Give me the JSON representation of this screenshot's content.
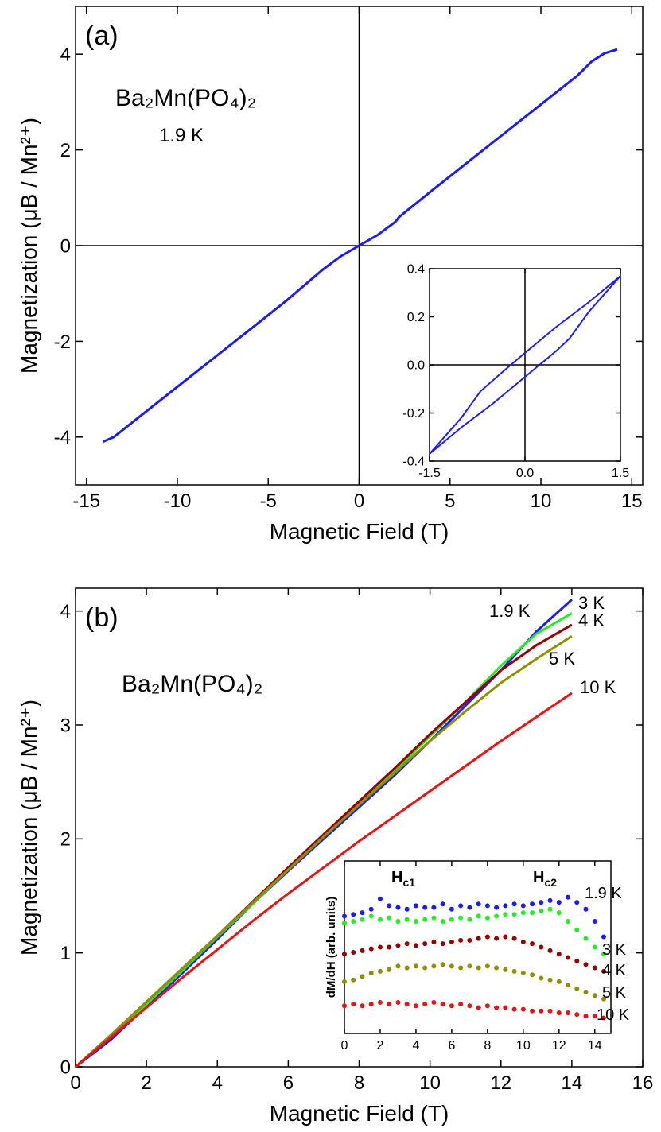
{
  "chart_data": [
    {
      "type": "line",
      "panel_label": "(a)",
      "compound": "Ba₂Mn(PO₄)₂",
      "temperature": "1.9 K",
      "xlabel": "Magnetic Field (T)",
      "ylabel": "Magnetization (μB / Mn²⁺)",
      "xlim": [
        -15.6,
        15.6
      ],
      "ylim": [
        -5,
        5
      ],
      "xticks": [
        -15,
        -10,
        -5,
        0,
        5,
        10,
        15
      ],
      "yticks": [
        -4,
        -2,
        0,
        2,
        4
      ],
      "zero_lines": true,
      "x": [
        -14.1,
        -13.5,
        -13,
        -12,
        -10,
        -8,
        -6,
        -4,
        -2,
        -1,
        0,
        1,
        2,
        2.2,
        4,
        6,
        8,
        10,
        12,
        12.8,
        13.5,
        14.2
      ],
      "series": [
        {
          "color": "#1a1aff",
          "values": [
            -4.1,
            -4.0,
            -3.85,
            -3.55,
            -2.95,
            -2.35,
            -1.75,
            -1.15,
            -0.5,
            -0.22,
            0,
            0.22,
            0.5,
            0.6,
            1.15,
            1.75,
            2.35,
            2.95,
            3.55,
            3.85,
            4.02,
            4.1
          ]
        }
      ]
    },
    {
      "type": "line",
      "xlim": [
        -1.5,
        1.5
      ],
      "ylim": [
        -0.4,
        0.4
      ],
      "xticks": [
        -1.5,
        {
          "value": 0,
          "label": "0.0"
        },
        1.5
      ],
      "yticks": [
        -0.4,
        -0.2,
        {
          "value": 0,
          "label": "0.0"
        },
        0.2,
        0.4
      ],
      "zero_lines": true,
      "series": [
        {
          "color": "#1a1aff",
          "x": [
            -1.5,
            -1.0,
            -0.7,
            -0.4,
            0,
            0.5,
            1.0,
            1.5
          ],
          "values": [
            -0.37,
            -0.22,
            -0.11,
            -0.04,
            0.05,
            0.16,
            0.26,
            0.37
          ]
        },
        {
          "color": "#1a1aff",
          "x": [
            -1.5,
            -1.0,
            -0.5,
            0,
            0.5,
            0.7,
            1.0,
            1.5
          ],
          "values": [
            -0.37,
            -0.26,
            -0.16,
            -0.05,
            0.06,
            0.11,
            0.22,
            0.37
          ]
        }
      ]
    },
    {
      "type": "line",
      "panel_label": "(b)",
      "compound": "Ba₂Mn(PO₄)₂",
      "xlabel": "Magnetic Field (T)",
      "ylabel": "Magnetization (μB / Mn²⁺)",
      "xlim": [
        0,
        16
      ],
      "ylim": [
        0,
        4.2
      ],
      "xticks": [
        0,
        2,
        4,
        6,
        8,
        10,
        12,
        14,
        16
      ],
      "yticks": [
        0,
        1,
        2,
        3,
        4
      ],
      "x": [
        0,
        1,
        2,
        3,
        4,
        5,
        6,
        7,
        8,
        9,
        10,
        11,
        12,
        13,
        14
      ],
      "series": [
        {
          "name": "1.9 K",
          "color": "#1a1aff",
          "values": [
            0,
            0.24,
            0.53,
            0.82,
            1.12,
            1.43,
            1.72,
            2.0,
            2.28,
            2.56,
            2.86,
            3.17,
            3.48,
            3.82,
            4.1
          ]
        },
        {
          "name": "3 K",
          "color": "#22ee22",
          "values": [
            0,
            0.27,
            0.55,
            0.84,
            1.14,
            1.43,
            1.73,
            2.02,
            2.3,
            2.6,
            2.9,
            3.2,
            3.52,
            3.8,
            3.98
          ]
        },
        {
          "name": "4 K",
          "color": "#990000",
          "values": [
            0,
            0.28,
            0.57,
            0.86,
            1.15,
            1.45,
            1.75,
            2.04,
            2.33,
            2.62,
            2.92,
            3.2,
            3.48,
            3.7,
            3.88
          ]
        },
        {
          "name": "5 K",
          "color": "#8f8f00",
          "values": [
            0,
            0.28,
            0.57,
            0.86,
            1.15,
            1.44,
            1.73,
            2.02,
            2.3,
            2.58,
            2.86,
            3.12,
            3.37,
            3.58,
            3.78
          ]
        },
        {
          "name": "10 K",
          "color": "#ee1111",
          "values": [
            0,
            0.26,
            0.52,
            0.78,
            1.03,
            1.28,
            1.52,
            1.75,
            1.98,
            2.2,
            2.42,
            2.64,
            2.86,
            3.07,
            3.28
          ]
        }
      ]
    },
    {
      "type": "scatter",
      "ylabel": "dM/dH (arb. units)",
      "annotations": [
        {
          "text": "H",
          "sub": "c1"
        },
        {
          "text": "H",
          "sub": "c2"
        }
      ],
      "xlim": [
        0,
        14.9
      ],
      "ylim": [
        0,
        10
      ],
      "xticks": [
        0,
        2,
        4,
        6,
        8,
        10,
        12,
        14
      ],
      "x": [
        0,
        0.5,
        1,
        1.5,
        2,
        2.5,
        3,
        3.5,
        4,
        4.5,
        5,
        5.5,
        6,
        6.5,
        7,
        7.5,
        8,
        8.5,
        9,
        9.5,
        10,
        10.5,
        11,
        11.5,
        12,
        12.5,
        13,
        13.5,
        14,
        14.5
      ],
      "series": [
        {
          "name": "1.9 K",
          "color": "#1a1aff",
          "values": [
            6.8,
            6.9,
            7.0,
            7.2,
            7.8,
            7.4,
            7.3,
            7.2,
            7.4,
            7.3,
            7.3,
            7.5,
            7.2,
            7.4,
            7.3,
            7.5,
            7.4,
            7.3,
            7.4,
            7.5,
            7.4,
            7.5,
            7.6,
            7.7,
            7.6,
            7.9,
            7.6,
            7.2,
            6.5,
            5.6
          ]
        },
        {
          "name": "3 K",
          "color": "#22ee22",
          "values": [
            6.4,
            6.5,
            6.6,
            6.8,
            6.6,
            6.7,
            6.5,
            6.6,
            6.5,
            6.6,
            6.7,
            6.5,
            6.6,
            6.7,
            6.6,
            6.8,
            6.7,
            6.8,
            6.9,
            6.9,
            7.0,
            7.0,
            7.1,
            7.2,
            7.0,
            6.5,
            6.0,
            5.5,
            5.0,
            4.6
          ]
        },
        {
          "name": "4 K",
          "color": "#990000",
          "values": [
            4.6,
            4.7,
            4.8,
            4.9,
            5.0,
            5.0,
            5.1,
            5.2,
            5.1,
            5.2,
            5.3,
            5.2,
            5.3,
            5.4,
            5.4,
            5.5,
            5.6,
            5.5,
            5.6,
            5.5,
            5.3,
            5.2,
            5.0,
            4.8,
            4.6,
            4.4,
            4.2,
            4.0,
            3.8,
            3.6
          ]
        },
        {
          "name": "5 K",
          "color": "#8f8f00",
          "values": [
            3.0,
            3.1,
            3.3,
            3.5,
            3.6,
            3.7,
            3.9,
            3.8,
            3.9,
            3.8,
            3.9,
            4.0,
            3.9,
            3.8,
            3.9,
            3.8,
            3.9,
            3.8,
            3.7,
            3.6,
            3.5,
            3.4,
            3.2,
            3.1,
            3.0,
            2.8,
            2.6,
            2.4,
            2.2,
            2.0
          ]
        },
        {
          "name": "10 K",
          "color": "#ee1111",
          "values": [
            1.6,
            1.7,
            1.6,
            1.7,
            1.8,
            1.7,
            1.8,
            1.7,
            1.6,
            1.7,
            1.8,
            1.7,
            1.6,
            1.7,
            1.6,
            1.5,
            1.6,
            1.5,
            1.5,
            1.4,
            1.4,
            1.3,
            1.3,
            1.3,
            1.2,
            1.2,
            1.1,
            1.0,
            1.0,
            0.9
          ]
        }
      ]
    }
  ]
}
